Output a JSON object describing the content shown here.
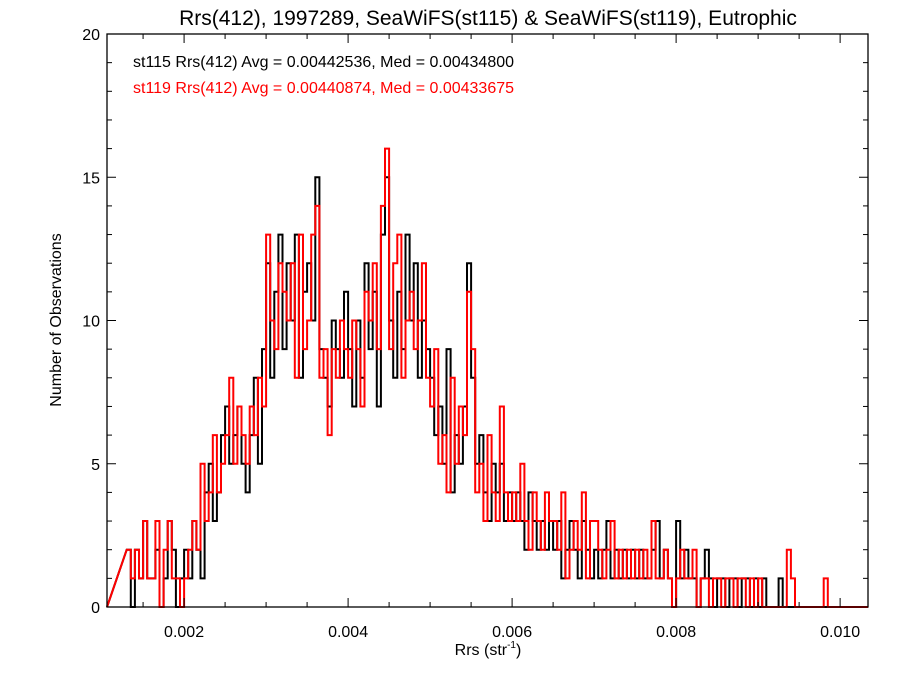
{
  "chart_data": {
    "type": "histogram",
    "title": "Rrs(412), 1997289, SeaWiFS(st115) & SeaWiFS(st119), Eutrophic",
    "xlabel": "Rrs (str",
    "xlabel_sup": "-1",
    "xlabel_close": ")",
    "ylabel": "Number of Observations",
    "xlim": [
      0.00106,
      0.01034
    ],
    "ylim": [
      0,
      20
    ],
    "x_ticks": [
      0.002,
      0.004,
      0.006,
      0.008,
      0.01
    ],
    "x_tick_labels": [
      "0.002",
      "0.004",
      "0.006",
      "0.008",
      "0.010"
    ],
    "y_ticks": [
      0,
      5,
      10,
      15,
      20
    ],
    "y_tick_labels": [
      "0",
      "5",
      "10",
      "15",
      "20"
    ],
    "bin_start": 0.0013,
    "bin_width": 5e-05,
    "series": [
      {
        "name": "st115",
        "color": "#000000",
        "label": "st115 Rrs(412) Avg = 0.00442536, Med = 0.00434800",
        "counts": [
          2,
          0,
          2,
          1,
          3,
          1,
          1,
          2,
          0,
          1,
          3,
          2,
          0,
          1,
          2,
          1,
          3,
          2,
          1,
          4,
          5,
          3,
          4,
          6,
          7,
          5,
          6,
          7,
          5,
          4,
          6,
          8,
          5,
          9,
          12,
          8,
          11,
          13,
          9,
          12,
          10,
          13,
          8,
          11,
          12,
          10,
          15,
          9,
          8,
          7,
          10,
          9,
          8,
          11,
          9,
          7,
          10,
          8,
          12,
          9,
          11,
          7,
          13,
          15,
          10,
          8,
          11,
          9,
          13,
          10,
          12,
          8,
          10,
          9,
          8,
          6,
          7,
          5,
          9,
          4,
          6,
          5,
          7,
          12,
          8,
          5,
          6,
          4,
          3,
          5,
          4,
          5,
          3,
          4,
          3,
          4,
          3,
          2,
          4,
          3,
          2,
          3,
          2,
          3,
          2,
          3,
          1,
          2,
          3,
          2,
          1,
          3,
          2,
          1,
          2,
          1,
          2,
          3,
          1,
          2,
          1,
          2,
          1,
          2,
          1,
          2,
          1,
          1,
          2,
          3,
          1,
          2,
          1,
          0,
          3,
          1,
          2,
          1,
          1,
          0,
          1,
          2,
          1,
          0,
          1,
          1,
          0,
          1,
          1,
          0,
          1,
          1,
          0,
          1,
          0,
          1,
          0,
          0,
          0,
          1,
          0,
          0,
          0,
          0,
          0,
          0,
          0,
          0,
          0,
          0,
          0,
          0
        ]
      },
      {
        "name": "st119",
        "color": "#ff0000",
        "label": "st119 Rrs(412) Avg = 0.00440874, Med = 0.00433675",
        "counts": [
          2,
          1,
          2,
          1,
          3,
          1,
          1,
          3,
          0,
          2,
          3,
          1,
          1,
          0,
          1,
          2,
          3,
          2,
          5,
          3,
          4,
          6,
          4,
          5,
          6,
          8,
          5,
          7,
          6,
          5,
          7,
          6,
          8,
          7,
          13,
          10,
          9,
          12,
          11,
          10,
          12,
          8,
          13,
          9,
          10,
          13,
          14,
          8,
          9,
          6,
          9,
          8,
          10,
          9,
          8,
          10,
          9,
          7,
          11,
          10,
          12,
          9,
          14,
          16,
          9,
          12,
          13,
          8,
          10,
          11,
          9,
          10,
          12,
          8,
          7,
          9,
          5,
          6,
          4,
          8,
          5,
          7,
          6,
          11,
          9,
          4,
          5,
          3,
          6,
          4,
          3,
          7,
          4,
          3,
          4,
          3,
          5,
          3,
          2,
          4,
          3,
          2,
          4,
          3,
          3,
          2,
          4,
          1,
          2,
          3,
          2,
          4,
          1,
          3,
          3,
          2,
          1,
          2,
          3,
          1,
          2,
          1,
          2,
          1,
          2,
          1,
          2,
          1,
          3,
          1,
          1,
          2,
          1,
          0,
          1,
          2,
          1,
          1,
          2,
          0,
          1,
          1,
          0,
          1,
          1,
          0,
          1,
          1,
          0,
          1,
          1,
          0,
          1,
          0,
          1,
          0,
          0,
          0,
          0,
          0,
          0,
          2,
          1,
          0,
          0,
          0,
          0,
          0,
          0,
          0,
          1,
          0
        ]
      }
    ]
  }
}
